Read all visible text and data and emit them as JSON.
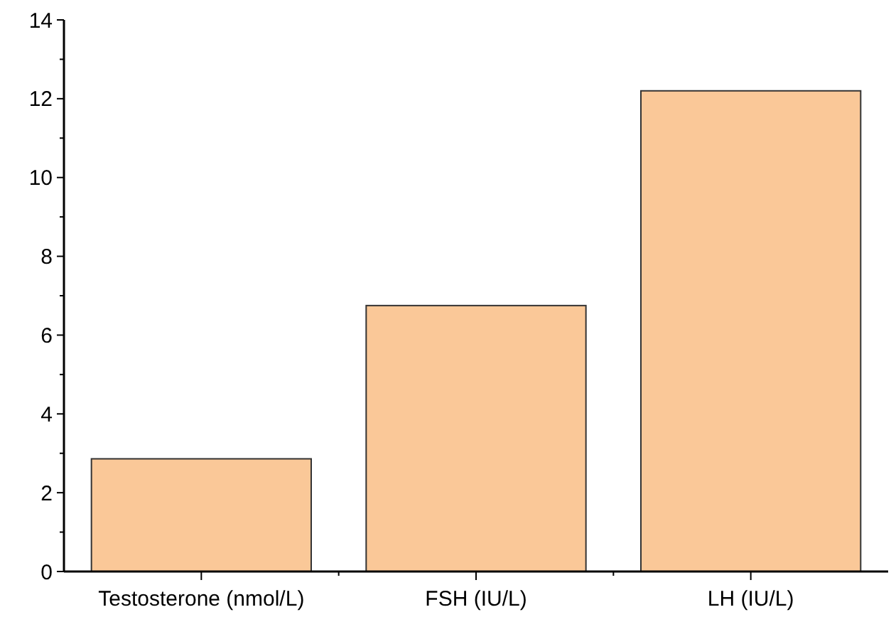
{
  "chart_data": {
    "type": "bar",
    "categories": [
      "Testosterone (nmol/L)",
      "FSH (IU/L)",
      "LH (IU/L)"
    ],
    "values": [
      2.86,
      6.75,
      12.2
    ],
    "color": "#fac898",
    "ylim": [
      0,
      14
    ],
    "yticks": [
      0,
      2,
      4,
      6,
      8,
      10,
      12,
      14
    ],
    "grid": false
  }
}
